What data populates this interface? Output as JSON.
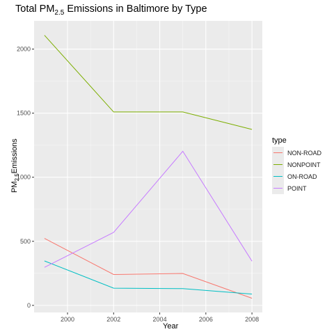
{
  "chart_data": {
    "type": "line",
    "title_main": "Total PM",
    "title_sub": "2.5",
    "title_rest": " Emissions in Baltimore by Type",
    "xlabel": "Year",
    "ylabel_main": "PM",
    "ylabel_sub": "2.5",
    "ylabel_rest": "Emissions",
    "x": [
      1999,
      2002,
      2005,
      2008
    ],
    "xlim": [
      1998.55,
      2008.45
    ],
    "ylim": [
      -55,
      2220
    ],
    "xticks": [
      2000,
      2002,
      2004,
      2006,
      2008
    ],
    "yticks": [
      0,
      500,
      1000,
      1500,
      2000
    ],
    "grid": true,
    "legend_title": "type",
    "legend_position": "right",
    "series": [
      {
        "name": "NON-ROAD",
        "color": "#F8766D",
        "values": [
          522.94,
          240.85,
          248.93,
          55.82
        ]
      },
      {
        "name": "NONPOINT",
        "color": "#7CAE00",
        "values": [
          2107.63,
          1509.5,
          1509.5,
          1373.21
        ]
      },
      {
        "name": "ON-ROAD",
        "color": "#00BFC4",
        "values": [
          346.82,
          134.31,
          130.43,
          88.28
        ]
      },
      {
        "name": "POINT",
        "color": "#C77CFF",
        "values": [
          296.8,
          569.26,
          1202.49,
          344.98
        ]
      }
    ]
  }
}
